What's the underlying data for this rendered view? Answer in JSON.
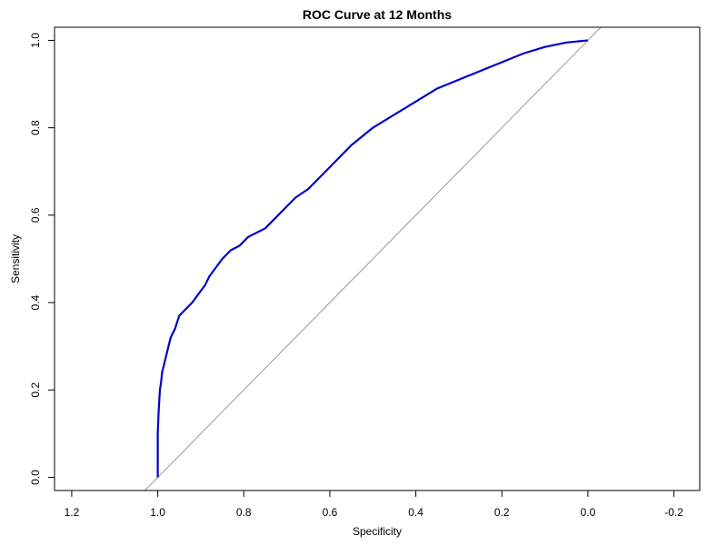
{
  "chart_data": {
    "type": "line",
    "title": "ROC Curve at 12 Months",
    "xlabel": "Specificity",
    "ylabel": "Sensitivity",
    "xlim": [
      1.24,
      -0.26
    ],
    "ylim": [
      -0.03,
      1.03
    ],
    "x_reversed": true,
    "grid": false,
    "x_ticks": [
      1.2,
      1.0,
      0.8,
      0.6,
      0.4,
      0.2,
      0.0,
      -0.2
    ],
    "x_tick_labels": [
      "1.2",
      "1.0",
      "0.8",
      "0.6",
      "0.4",
      "0.2",
      "0.0",
      "-0.2"
    ],
    "y_ticks": [
      0.0,
      0.2,
      0.4,
      0.6,
      0.8,
      1.0
    ],
    "y_tick_labels": [
      "0.0",
      "0.2",
      "0.4",
      "0.6",
      "0.8",
      "1.0"
    ],
    "series": [
      {
        "color": "#0000cc",
        "x": [
          1.0,
          1.0,
          0.998,
          0.995,
          0.992,
          0.99,
          0.985,
          0.98,
          0.975,
          0.97,
          0.96,
          0.95,
          0.94,
          0.92,
          0.905,
          0.89,
          0.88,
          0.865,
          0.85,
          0.83,
          0.81,
          0.79,
          0.77,
          0.75,
          0.73,
          0.7,
          0.68,
          0.65,
          0.6,
          0.55,
          0.5,
          0.45,
          0.4,
          0.35,
          0.3,
          0.25,
          0.2,
          0.15,
          0.1,
          0.05,
          0.0
        ],
        "y": [
          0.0,
          0.1,
          0.15,
          0.2,
          0.22,
          0.24,
          0.26,
          0.28,
          0.3,
          0.32,
          0.34,
          0.37,
          0.38,
          0.4,
          0.42,
          0.44,
          0.46,
          0.48,
          0.5,
          0.52,
          0.53,
          0.55,
          0.56,
          0.57,
          0.59,
          0.62,
          0.64,
          0.66,
          0.71,
          0.76,
          0.8,
          0.83,
          0.86,
          0.89,
          0.91,
          0.93,
          0.95,
          0.97,
          0.985,
          0.995,
          1.0
        ]
      }
    ],
    "reference_line": {
      "color": "#999999",
      "x": [
        1.0,
        0.0
      ],
      "y": [
        0.0,
        1.0
      ]
    }
  }
}
